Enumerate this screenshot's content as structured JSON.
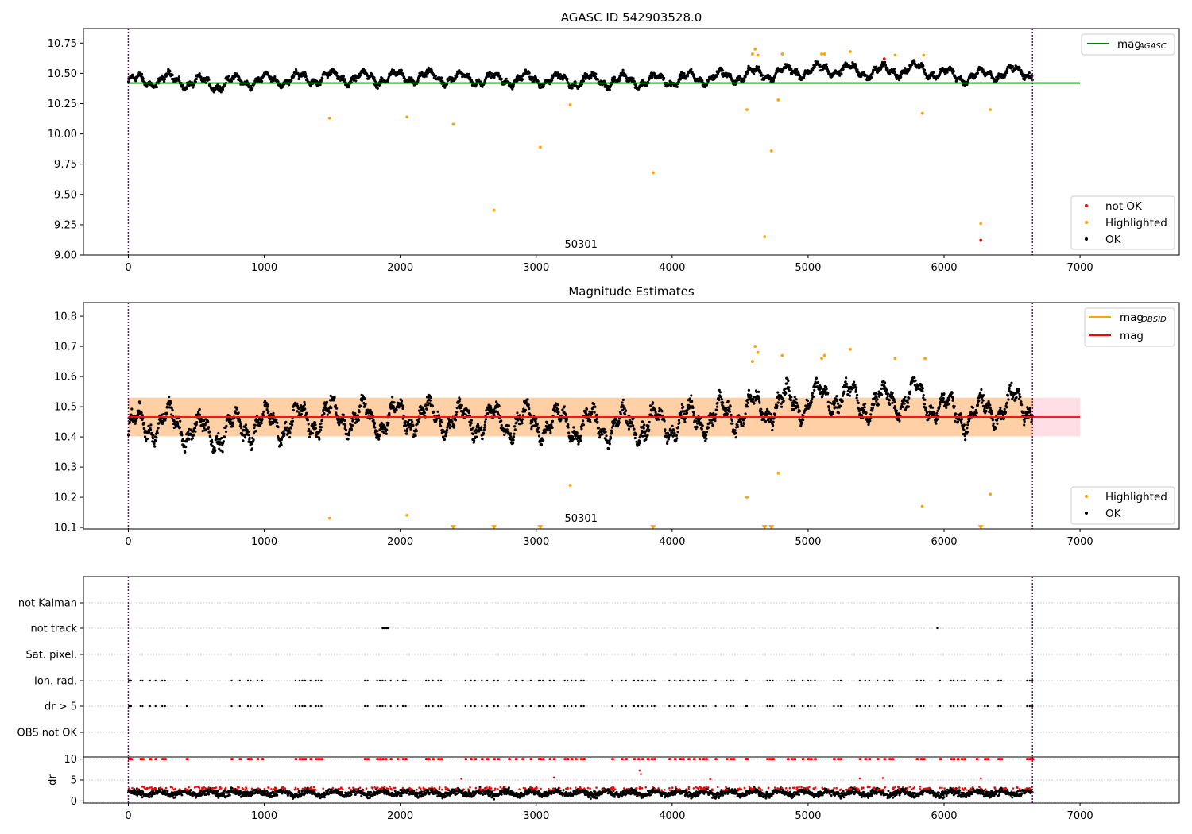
{
  "chart_data": [
    {
      "type": "scatter",
      "title": "AGASC ID 542903528.0",
      "xlim": [
        -330,
        7730
      ],
      "ylim": [
        9.0,
        10.87
      ],
      "xticks": [
        0,
        1000,
        2000,
        3000,
        4000,
        5000,
        6000,
        7000
      ],
      "yticks": [
        "9.00",
        "9.25",
        "9.50",
        "9.75",
        "10.00",
        "10.25",
        "10.50",
        "10.75"
      ],
      "annotation": "50301",
      "obs_boundaries": [
        0,
        6650
      ],
      "mag_agasc": 10.42,
      "legend_top": {
        "placement": "upper right",
        "entries": [
          {
            "label_main": "mag",
            "label_sub": "AGASC",
            "color": "#008000"
          }
        ]
      },
      "legend_bottom": {
        "placement": "lower right",
        "entries": [
          {
            "label": "not OK",
            "color": "#ff0000"
          },
          {
            "label": "Highlighted",
            "color": "#ffa500"
          },
          {
            "label": "OK",
            "color": "#000000"
          }
        ]
      },
      "series": [
        {
          "name": "not OK",
          "color": "#ff0000",
          "x": [
            5560,
            6270
          ],
          "y": [
            10.62,
            9.12
          ]
        },
        {
          "name": "Highlighted",
          "color": "#ffa500",
          "x": [
            1480,
            2050,
            2390,
            2690,
            3030,
            3250,
            3860,
            4550,
            4590,
            4610,
            4630,
            4680,
            4730,
            4780,
            4810,
            5100,
            5120,
            5310,
            5640,
            5840,
            5850,
            6270,
            6340
          ],
          "y": [
            10.13,
            10.14,
            10.08,
            9.37,
            9.89,
            10.24,
            9.68,
            10.2,
            10.66,
            10.7,
            10.65,
            9.15,
            9.86,
            10.28,
            10.66,
            10.66,
            10.66,
            10.68,
            10.65,
            10.17,
            10.65,
            9.26,
            10.2
          ]
        },
        {
          "name": "OK",
          "color": "#000000",
          "baseline": [
            [
              0,
              10.43
            ],
            [
              300,
              10.45
            ],
            [
              600,
              10.41
            ],
            [
              900,
              10.44
            ],
            [
              1200,
              10.45
            ],
            [
              1500,
              10.47
            ],
            [
              1800,
              10.46
            ],
            [
              2100,
              10.47
            ],
            [
              2400,
              10.46
            ],
            [
              2700,
              10.45
            ],
            [
              3000,
              10.45
            ],
            [
              3300,
              10.44
            ],
            [
              3600,
              10.44
            ],
            [
              3900,
              10.44
            ],
            [
              4200,
              10.46
            ],
            [
              4500,
              10.48
            ],
            [
              4700,
              10.5
            ],
            [
              5000,
              10.52
            ],
            [
              5200,
              10.54
            ],
            [
              5400,
              10.51
            ],
            [
              5600,
              10.52
            ],
            [
              5800,
              10.54
            ],
            [
              6000,
              10.49
            ],
            [
              6200,
              10.47
            ],
            [
              6400,
              10.5
            ],
            [
              6650,
              10.51
            ]
          ],
          "amplitude": 0.065,
          "count": 2600
        }
      ]
    },
    {
      "type": "scatter",
      "title": "Magnitude Estimates",
      "xlim": [
        -330,
        7730
      ],
      "ylim": [
        10.095,
        10.845
      ],
      "xticks": [
        0,
        1000,
        2000,
        3000,
        4000,
        5000,
        6000,
        7000
      ],
      "yticks": [
        "10.1",
        "10.2",
        "10.3",
        "10.4",
        "10.5",
        "10.6",
        "10.7",
        "10.8"
      ],
      "annotation": "50301",
      "obs_boundaries": [
        0,
        6650
      ],
      "mag": 10.466,
      "mag_band": [
        10.402,
        10.53
      ],
      "mag_obsid": 10.466,
      "mag_obsid_band": [
        10.402,
        10.53
      ],
      "legend_top": {
        "placement": "upper right",
        "entries": [
          {
            "label_main": "mag",
            "label_sub": "OBSID",
            "color": "#ffa500"
          },
          {
            "label_main": "mag",
            "label_sub": "",
            "color": "#ff0000"
          }
        ]
      },
      "legend_bottom": {
        "placement": "lower right",
        "entries": [
          {
            "label": "Highlighted",
            "color": "#ffa500"
          },
          {
            "label": "OK",
            "color": "#000000"
          }
        ]
      },
      "series": [
        {
          "name": "Highlighted",
          "color": "#ffa500",
          "x": [
            1480,
            2050,
            3250,
            4550,
            4590,
            4610,
            4630,
            4780,
            4810,
            5100,
            5120,
            5310,
            5640,
            5840,
            5860,
            6340
          ],
          "y": [
            10.13,
            10.14,
            10.24,
            10.2,
            10.65,
            10.7,
            10.68,
            10.28,
            10.67,
            10.66,
            10.67,
            10.69,
            10.66,
            10.17,
            10.66,
            10.21
          ]
        },
        {
          "name": "Highlighted (out of range)",
          "color": "#ffa500",
          "marker": "triangle-down",
          "x": [
            2390,
            2690,
            3030,
            3860,
            4680,
            4730,
            6270
          ],
          "y": [
            10.1,
            10.1,
            10.1,
            10.1,
            10.1,
            10.1,
            10.1
          ]
        },
        {
          "name": "OK",
          "color": "#000000",
          "baseline": [
            [
              0,
              10.43
            ],
            [
              300,
              10.45
            ],
            [
              600,
              10.41
            ],
            [
              900,
              10.44
            ],
            [
              1200,
              10.45
            ],
            [
              1500,
              10.47
            ],
            [
              1800,
              10.46
            ],
            [
              2100,
              10.47
            ],
            [
              2400,
              10.46
            ],
            [
              2700,
              10.45
            ],
            [
              3000,
              10.45
            ],
            [
              3300,
              10.44
            ],
            [
              3600,
              10.44
            ],
            [
              3900,
              10.44
            ],
            [
              4200,
              10.46
            ],
            [
              4500,
              10.48
            ],
            [
              4700,
              10.5
            ],
            [
              5000,
              10.52
            ],
            [
              5200,
              10.54
            ],
            [
              5400,
              10.51
            ],
            [
              5600,
              10.52
            ],
            [
              5800,
              10.54
            ],
            [
              6000,
              10.49
            ],
            [
              6200,
              10.47
            ],
            [
              6400,
              10.5
            ],
            [
              6650,
              10.51
            ]
          ],
          "amplitude": 0.065,
          "count": 2600
        }
      ]
    },
    {
      "type": "scatter",
      "title": "",
      "xlim": [
        -330,
        7730
      ],
      "categories": [
        "not Kalman",
        "not track",
        "Sat. pixel.",
        "Ion. rad.",
        "dr > 5",
        "OBS not OK"
      ],
      "obs_boundaries": [
        0,
        6650
      ],
      "flags": {
        "not track": [
          1870,
          1880,
          1890,
          1900,
          1910,
          5950
        ],
        "Ion. rad.": [
          5,
          15,
          20,
          90,
          105,
          160,
          200,
          250,
          270,
          430,
          760,
          820,
          880,
          900,
          950,
          985,
          1230,
          1260,
          1280,
          1300,
          1340,
          1380,
          1400,
          1420,
          1740,
          1760,
          1830,
          1850,
          1870,
          1890,
          1930,
          1980,
          2020,
          2040,
          2190,
          2210,
          2240,
          2280,
          2300,
          2480,
          2520,
          2550,
          2600,
          2640,
          2690,
          2720,
          2800,
          2850,
          2900,
          2960,
          3020,
          3030,
          3050,
          3100,
          3130,
          3210,
          3230,
          3260,
          3290,
          3330,
          3350,
          3560,
          3630,
          3660,
          3720,
          3750,
          3780,
          3820,
          3850,
          3870,
          3980,
          4020,
          4060,
          4080,
          4120,
          4160,
          4200,
          4230,
          4250,
          4320,
          4400,
          4430,
          4450,
          4540,
          4550,
          4700,
          4720,
          4740,
          4850,
          4880,
          4900,
          4960,
          5000,
          5020,
          5050,
          5190,
          5220,
          5240,
          5380,
          5420,
          5450,
          5510,
          5560,
          5600,
          5620,
          5800,
          5830,
          5850,
          5970,
          6050,
          6070,
          6100,
          6130,
          6150,
          6240,
          6300,
          6320,
          6400,
          6420,
          6610,
          6630,
          6650
        ],
        "dr > 5": [
          5,
          15,
          20,
          90,
          105,
          160,
          200,
          250,
          270,
          430,
          760,
          820,
          880,
          900,
          950,
          985,
          1230,
          1260,
          1280,
          1300,
          1340,
          1380,
          1400,
          1420,
          1740,
          1760,
          1830,
          1850,
          1870,
          1890,
          1930,
          1980,
          2020,
          2040,
          2190,
          2210,
          2240,
          2280,
          2300,
          2480,
          2520,
          2550,
          2600,
          2640,
          2690,
          2720,
          2800,
          2850,
          2900,
          2960,
          3020,
          3030,
          3050,
          3100,
          3130,
          3210,
          3230,
          3260,
          3290,
          3330,
          3350,
          3560,
          3630,
          3660,
          3720,
          3750,
          3780,
          3820,
          3850,
          3870,
          3980,
          4020,
          4060,
          4080,
          4120,
          4160,
          4200,
          4230,
          4250,
          4320,
          4400,
          4430,
          4450,
          4540,
          4550,
          4700,
          4720,
          4740,
          4850,
          4880,
          4900,
          4960,
          5000,
          5020,
          5050,
          5190,
          5220,
          5240,
          5380,
          5420,
          5450,
          5510,
          5560,
          5600,
          5620,
          5800,
          5830,
          5850,
          5970,
          6050,
          6070,
          6100,
          6130,
          6150,
          6240,
          6300,
          6320,
          6400,
          6420,
          6610,
          6630,
          6650
        ]
      }
    },
    {
      "type": "scatter",
      "title": "",
      "ylabel": "dr",
      "xlim": [
        -330,
        7730
      ],
      "ylim": [
        -0.5,
        10.5
      ],
      "xticks": [
        0,
        1000,
        2000,
        3000,
        4000,
        5000,
        6000,
        7000
      ],
      "yticks": [
        "0",
        "5",
        "10"
      ],
      "obs_boundaries": [
        0,
        6650
      ],
      "dr_capped": {
        "value": 10,
        "color": "#ff0000",
        "x": [
          5,
          15,
          20,
          90,
          105,
          160,
          200,
          250,
          270,
          430,
          760,
          820,
          880,
          900,
          950,
          985,
          1230,
          1260,
          1280,
          1300,
          1340,
          1380,
          1400,
          1420,
          1740,
          1760,
          1830,
          1850,
          1870,
          1890,
          1930,
          1980,
          2020,
          2040,
          2190,
          2210,
          2240,
          2280,
          2300,
          2480,
          2520,
          2550,
          2600,
          2640,
          2690,
          2720,
          2800,
          2850,
          2900,
          2960,
          3020,
          3030,
          3050,
          3100,
          3130,
          3210,
          3230,
          3260,
          3290,
          3330,
          3350,
          3560,
          3630,
          3660,
          3720,
          3750,
          3780,
          3820,
          3850,
          3870,
          3980,
          4020,
          4060,
          4080,
          4120,
          4160,
          4200,
          4230,
          4250,
          4320,
          4400,
          4430,
          4450,
          4540,
          4550,
          4700,
          4720,
          4740,
          4850,
          4880,
          4900,
          4960,
          5000,
          5020,
          5050,
          5190,
          5220,
          5240,
          5380,
          5420,
          5450,
          5510,
          5560,
          5600,
          5620,
          5800,
          5830,
          5850,
          5970,
          6050,
          6070,
          6100,
          6130,
          6150,
          6240,
          6300,
          6320,
          6400,
          6420,
          6610,
          6630,
          6650
        ]
      },
      "dr_outliers": {
        "color": "#ff0000",
        "x": [
          2450,
          3130,
          3760,
          3770,
          4280,
          5380,
          5550,
          6270
        ],
        "y": [
          5.3,
          5.6,
          7.3,
          6.4,
          5.2,
          5.4,
          5.5,
          5.4
        ]
      },
      "dr_ok": {
        "color": "#000000",
        "mean": 1.9,
        "spread": 1.1,
        "count": 2600
      },
      "dr_flagged": {
        "color": "#ff0000",
        "mean": 3.0,
        "spread": 0.6,
        "count": 380
      }
    }
  ]
}
